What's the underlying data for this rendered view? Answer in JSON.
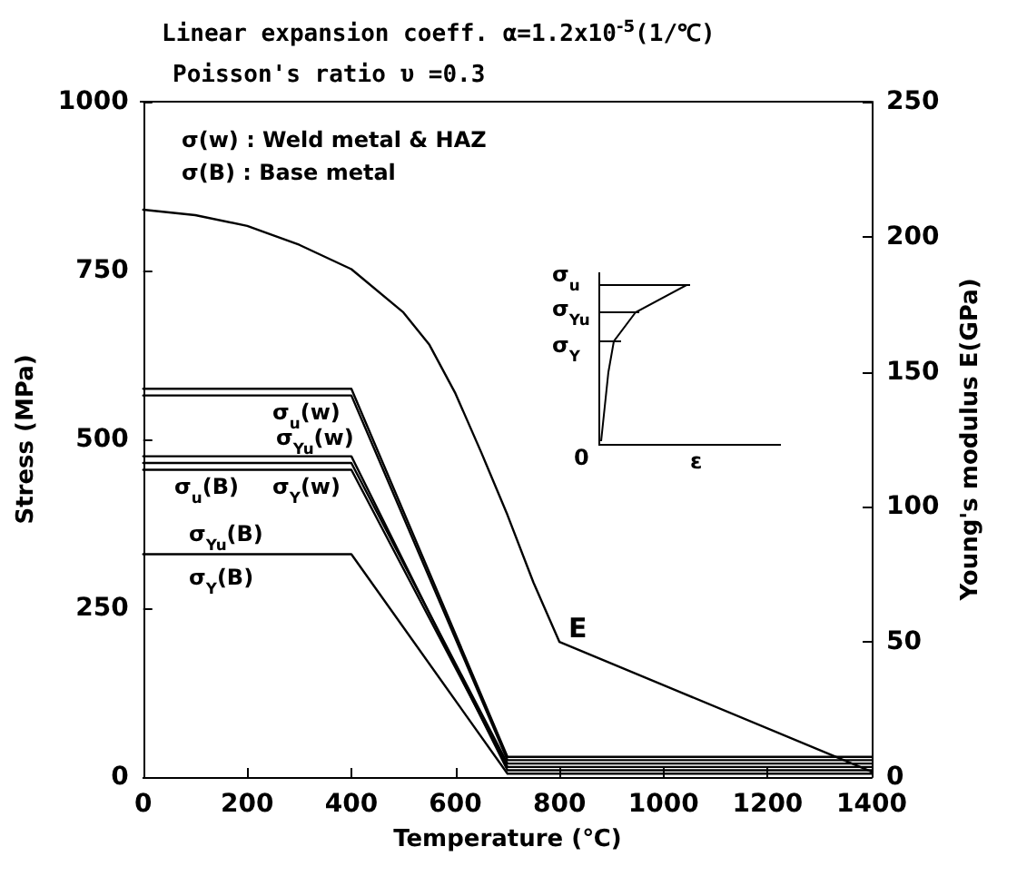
{
  "chart_data": {
    "type": "line",
    "title": "Linear expansion coeff. α=1.2x10$^{-5}$(1/℃)",
    "subtitle": "Poisson's ratio υ =0.3",
    "xlabel": "Temperature (℃)",
    "ylabel": "Stress (MPa)",
    "y2label": "Young's modulus E(GPa)",
    "xlim": [
      0,
      1400
    ],
    "xticks": [
      0,
      200,
      400,
      600,
      800,
      1000,
      1200,
      1400
    ],
    "ylim": [
      0,
      1000
    ],
    "yticks": [
      0,
      250,
      500,
      750,
      1000
    ],
    "y2lim": [
      0,
      250
    ],
    "y2ticks": [
      0,
      50,
      100,
      150,
      200,
      250
    ],
    "grid": false,
    "legend": false,
    "marker": "none",
    "line_style": "solid",
    "series": [
      {
        "color": "#000000",
        "x": [
          0,
          400,
          700,
          1400
        ],
        "values": [
          575,
          575,
          30,
          30
        ]
      },
      {
        "color": "#000000",
        "x": [
          0,
          400,
          700,
          1400
        ],
        "values": [
          565,
          565,
          25,
          25
        ]
      },
      {
        "color": "#000000",
        "x": [
          0,
          400,
          700,
          1400
        ],
        "values": [
          475,
          475,
          10,
          10
        ]
      },
      {
        "color": "#000000",
        "x": [
          0,
          400,
          700,
          1400
        ],
        "values": [
          465,
          465,
          20,
          20
        ]
      },
      {
        "color": "#000000",
        "x": [
          0,
          400,
          700,
          1400
        ],
        "values": [
          455,
          455,
          15,
          15
        ]
      },
      {
        "color": "#000000",
        "x": [
          0,
          400,
          700,
          1400
        ],
        "values": [
          330,
          330,
          5,
          5
        ]
      },
      {
        "color": "#000000",
        "axis": "y2",
        "x": [
          0,
          100,
          200,
          300,
          400,
          500,
          550,
          600,
          650,
          700,
          750,
          800,
          1400
        ],
        "values": [
          210,
          208,
          204,
          197,
          188,
          172,
          160,
          142,
          120,
          97,
          72,
          50,
          2
        ]
      }
    ],
    "annotations": [
      "σ(w) : Weld metal & HAZ",
      "σ(B) : Base metal",
      "σ$_{u}$",
      "σ$_{Yu}$",
      "σ$_{Y}$",
      "0",
      "ε",
      "σ$_{u}$(w)",
      "σ$_{Yu}$(w)",
      "σ$_{Y}$(w)",
      "σ$_{u}$(B)",
      "σ$_{Yu}$(B)",
      "σ$_{Y}$(B)",
      "E"
    ]
  }
}
